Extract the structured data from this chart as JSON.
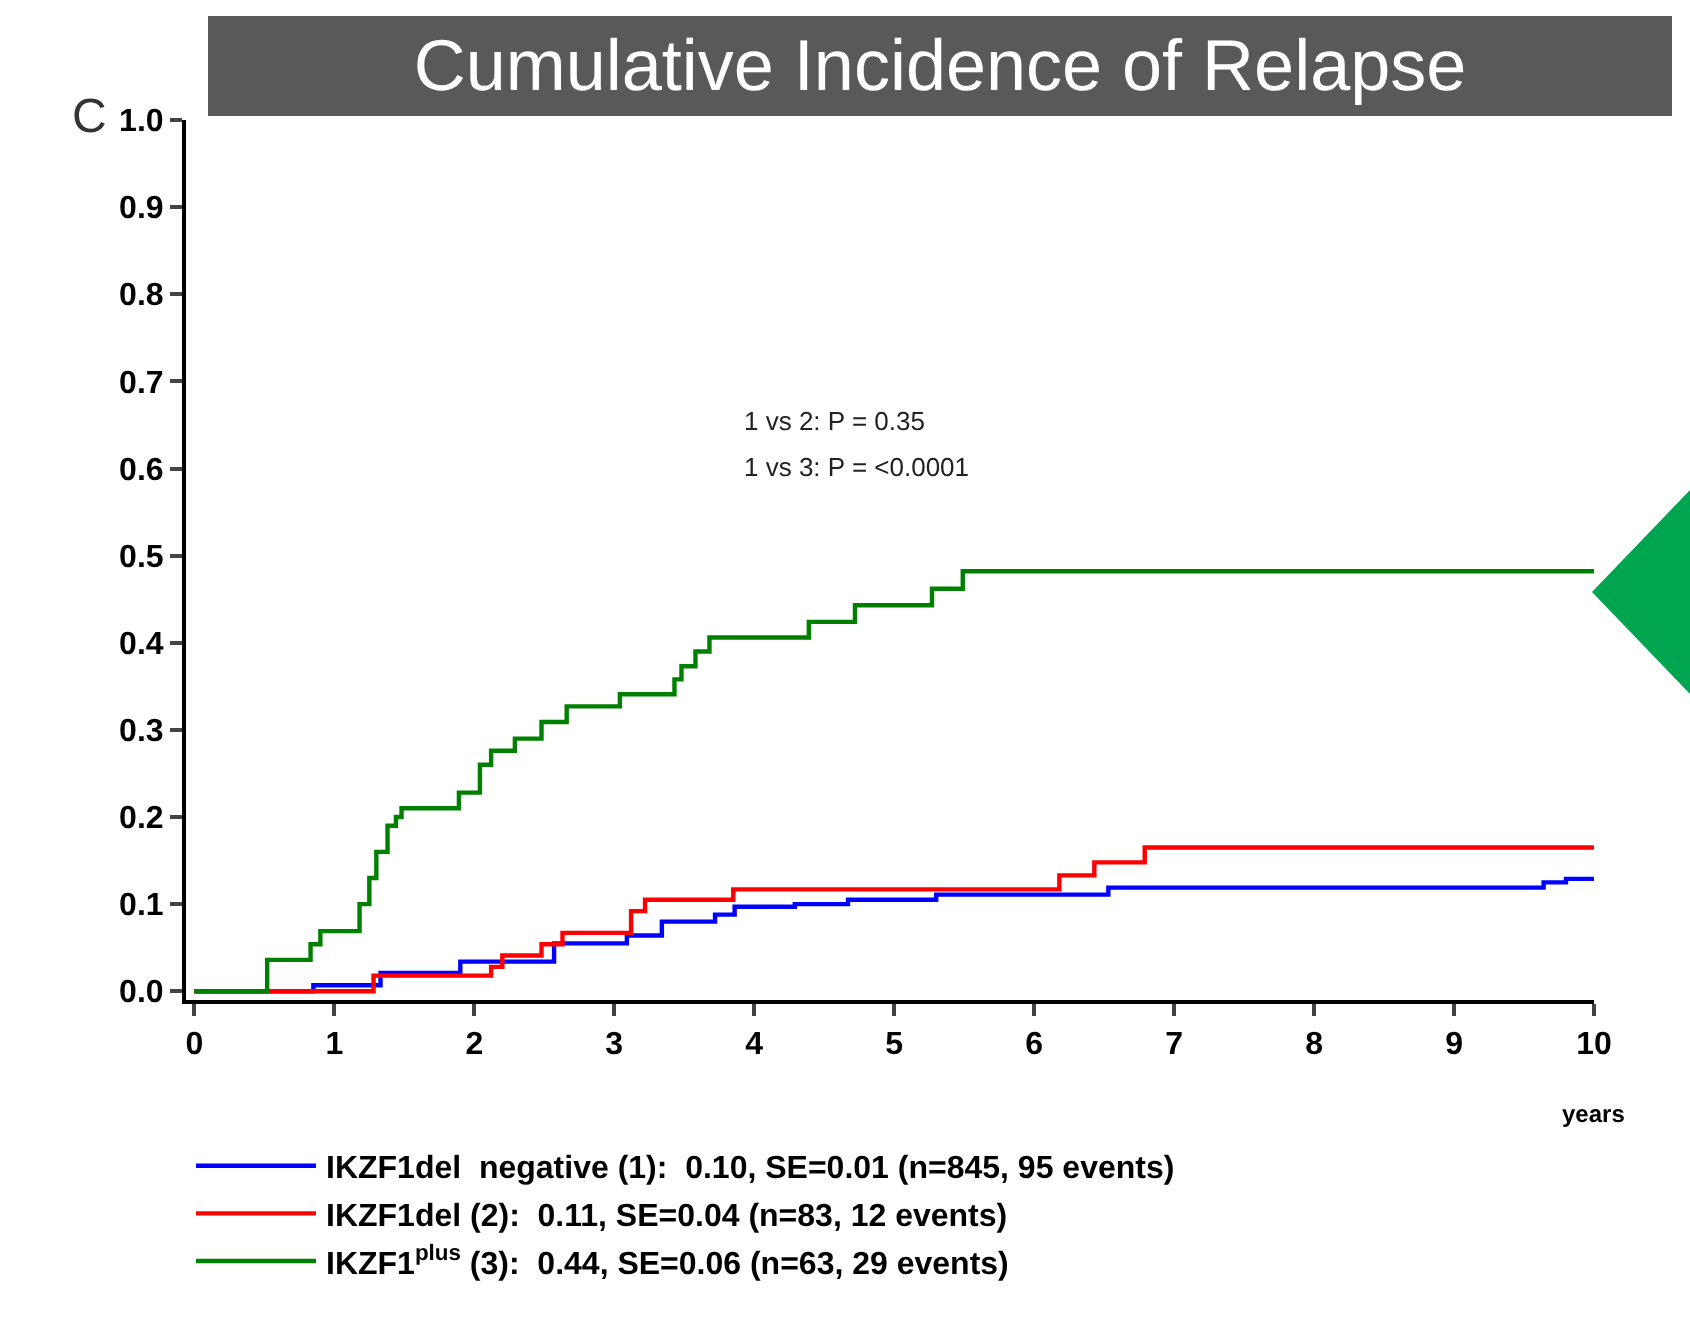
{
  "chart_data": {
    "type": "step",
    "title": "Cumulative Incidence of Relapse",
    "xlabel": "years",
    "annotations": [
      "C",
      "1 vs 2: P = 0.35",
      "1 vs 3: P = <0.0001"
    ],
    "xlim": [
      -0.06,
      10
    ],
    "xticks": [
      0,
      1,
      2,
      3,
      4,
      5,
      6,
      7,
      8,
      9,
      10
    ],
    "ylim": [
      -0.01,
      1.0
    ],
    "yticks": [
      {
        "value": 0,
        "label": "0.0"
      },
      0.1,
      0.2,
      0.3,
      0.4,
      0.5,
      0.6,
      0.7,
      0.8,
      0.9,
      {
        "value": 1,
        "label": "1.0"
      }
    ],
    "grid": false,
    "legend": "bottom",
    "marker": "none",
    "line_style": "solid",
    "series": [
      {
        "name": "IKZF1del  negative (1):  0.10, SE=0.01 (n=845, 95 events)",
        "color": "#0000ff",
        "x": [
          0,
          0.5,
          0.85,
          1.33,
          1.9,
          2.57,
          3.09,
          3.34,
          3.72,
          3.86,
          4.29,
          4.67,
          5.3,
          6.53,
          9.64,
          9.8,
          10
        ],
        "values": [
          0,
          0,
          0.007,
          0.021,
          0.034,
          0.055,
          0.064,
          0.08,
          0.088,
          0.097,
          0.1,
          0.105,
          0.111,
          0.119,
          0.125,
          0.129,
          0.129
        ]
      },
      {
        "name": "IKZF1del (2):  0.11, SE=0.04 (n=83, 12 events)",
        "color": "#ff0000",
        "x": [
          0,
          1.28,
          2.12,
          2.2,
          2.48,
          2.63,
          3.12,
          3.22,
          3.85,
          6.18,
          6.43,
          6.79,
          10
        ],
        "values": [
          0,
          0.018,
          0.028,
          0.041,
          0.054,
          0.067,
          0.092,
          0.105,
          0.117,
          0.133,
          0.148,
          0.165,
          0.165
        ]
      },
      {
        "name": "IKZF1$^{plus}$ (3):  0.44, SE=0.06 (n=63, 29 events)",
        "color": "#008000",
        "x": [
          0,
          0.52,
          0.83,
          0.9,
          1.18,
          1.25,
          1.3,
          1.38,
          1.44,
          1.48,
          1.89,
          2.04,
          2.08,
          2.12,
          2.29,
          2.48,
          2.66,
          3.04,
          3.43,
          3.48,
          3.58,
          3.68,
          4.39,
          4.72,
          5.27,
          5.49,
          10
        ],
        "values": [
          0,
          0.036,
          0.054,
          0.069,
          0.1,
          0.13,
          0.16,
          0.19,
          0.2,
          0.21,
          0.228,
          0.26,
          0.26,
          0.276,
          0.29,
          0.309,
          0.327,
          0.341,
          0.358,
          0.373,
          0.39,
          0.406,
          0.424,
          0.443,
          0.462,
          0.482,
          0.482
        ]
      }
    ]
  }
}
